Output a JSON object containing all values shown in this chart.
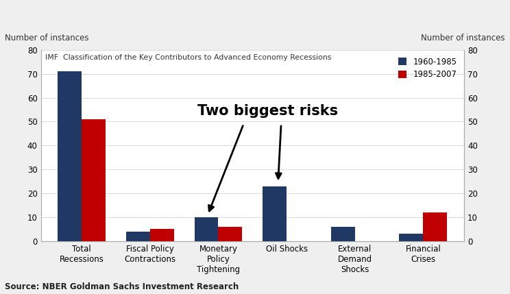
{
  "title": "IMF  Classification of the Key Contributors to Advanced Economy Recessions",
  "categories": [
    "Total\nRecessions",
    "Fiscal Policy\nContractions",
    "Monetary\nPolicy\nTightening",
    "Oil Shocks",
    "External\nDemand\nShocks",
    "Financial\nCrises"
  ],
  "series_1960": [
    71,
    4,
    10,
    23,
    6,
    3
  ],
  "series_1985": [
    51,
    5,
    6,
    0,
    0,
    12
  ],
  "color_1960": "#1F3864",
  "color_1985": "#C00000",
  "legend_1960": "1960-1985",
  "legend_1985": "1985-2007",
  "ylim": [
    0,
    80
  ],
  "yticks": [
    0,
    10,
    20,
    30,
    40,
    50,
    60,
    70,
    80
  ],
  "ylabel_left": "Number of instances",
  "ylabel_right": "Number of instances",
  "annotation_text": "Two biggest risks",
  "source_text": "Source: NBER Goldman Sachs Investment Research",
  "bg_color": "#EFEFEF",
  "plot_bg_color": "#FFFFFF"
}
